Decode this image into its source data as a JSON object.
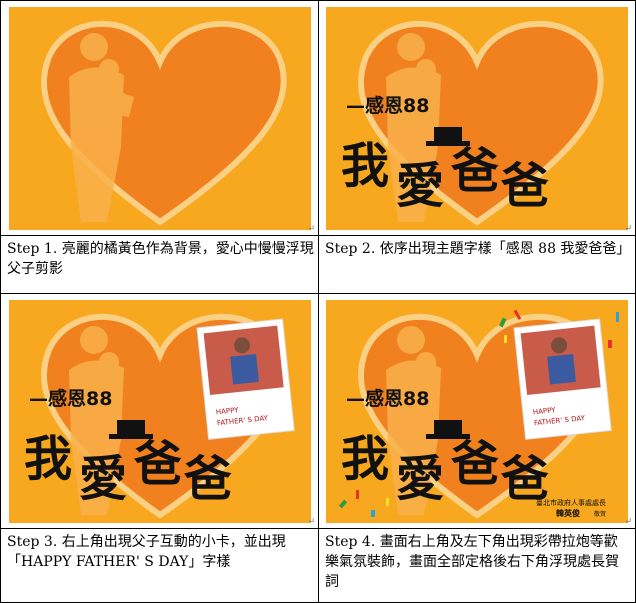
{
  "captions": [
    "Step 1. 亮麗的橘黃色作為背景，愛心中慢慢浮現父子剪影",
    "Step 2. 依序出現主題字樣「感恩 88 我愛爸爸」",
    "Step 3. 右上角出現父子互動的小卡，並出現「HAPPY FATHER' S DAY」字樣",
    "Step 4. 畫面右上角及左下角出現彩帶拉炮等歡樂氣氛裝飾，畫面全部定格後右下角浮現處長賀詞"
  ],
  "artwork": {
    "subtitle": "—感恩88",
    "headline": [
      "我",
      "愛",
      "爸",
      "爸"
    ],
    "card_line1": "HAPPY",
    "card_line2": "FATHER' S  DAY",
    "signature_org": "臺北市政府人事處處長",
    "signature_name": "韓英俊",
    "signature_suffix": "敬賀"
  },
  "colors": {
    "background": "#f7a81f",
    "heart": "#f07f1e",
    "text": "#111111"
  },
  "icons": [
    "hat-icon",
    "confetti",
    "father-son-photo"
  ]
}
